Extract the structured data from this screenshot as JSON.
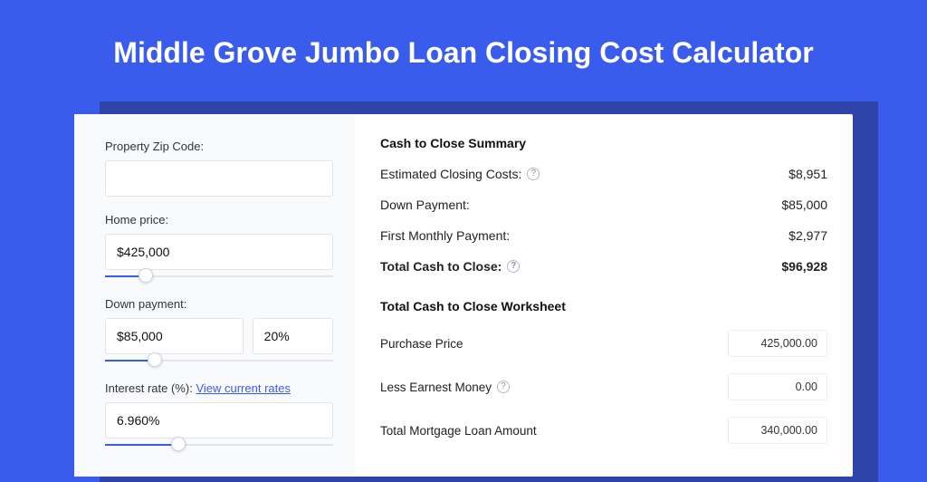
{
  "page": {
    "title": "Middle Grove Jumbo Loan Closing Cost Calculator",
    "background_color": "#3A5CED",
    "shadow_color": "#2E44A8",
    "card_color": "#ffffff",
    "left_panel_color": "#f9fafc"
  },
  "form": {
    "zip": {
      "label": "Property Zip Code:",
      "value": ""
    },
    "home_price": {
      "label": "Home price:",
      "value": "$425,000",
      "slider": {
        "fill_pct": 18,
        "thumb_pct": 18
      }
    },
    "down_payment": {
      "label": "Down payment:",
      "amount": "$85,000",
      "percent": "20%",
      "slider": {
        "fill_pct": 22,
        "thumb_pct": 22
      }
    },
    "interest_rate": {
      "label": "Interest rate (%):",
      "link_text": "View current rates",
      "value": "6.960%",
      "slider": {
        "fill_pct": 32,
        "thumb_pct": 32
      }
    }
  },
  "summary": {
    "title": "Cash to Close Summary",
    "rows": [
      {
        "label": "Estimated Closing Costs:",
        "help": true,
        "value": "$8,951",
        "bold": false
      },
      {
        "label": "Down Payment:",
        "help": false,
        "value": "$85,000",
        "bold": false
      },
      {
        "label": "First Monthly Payment:",
        "help": false,
        "value": "$2,977",
        "bold": false
      },
      {
        "label": "Total Cash to Close:",
        "help": true,
        "value": "$96,928",
        "bold": true
      }
    ]
  },
  "worksheet": {
    "title": "Total Cash to Close Worksheet",
    "rows": [
      {
        "label": "Purchase Price",
        "help": false,
        "value": "425,000.00"
      },
      {
        "label": "Less Earnest Money",
        "help": true,
        "value": "0.00"
      },
      {
        "label": "Total Mortgage Loan Amount",
        "help": false,
        "value": "340,000.00"
      }
    ]
  },
  "theme": {
    "accent": "#3A5CED",
    "text": "#222222",
    "muted": "#8a8f9c",
    "border": "#e2e4ea"
  }
}
